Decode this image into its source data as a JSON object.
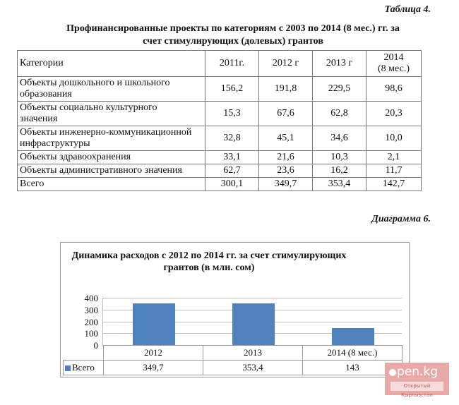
{
  "table": {
    "caption": "Таблица 4.",
    "title_line1": "Профинансированные проекты по категориям с 2003 по 2014 (8 мес.) гг. за",
    "title_line2": "счет стимулирующих (долевых) грантов",
    "headers": [
      "Категории",
      "2011г.",
      "2012 г",
      "2013 г",
      "2014",
      "(8 мес.)"
    ],
    "rows": [
      {
        "category_l1": "Объекты дошкольного и школьного",
        "category_l2": "образования",
        "values": [
          "156,2",
          "191,8",
          "229,5",
          "98,6"
        ]
      },
      {
        "category_l1": "Объекты социально культурного",
        "category_l2": "значения",
        "values": [
          "15,3",
          "67,6",
          "62,8",
          "20,3"
        ]
      },
      {
        "category_l1": "Объекты инженерно-коммуникационной",
        "category_l2": "инфраструктуры",
        "values": [
          "32,8",
          "45,1",
          "34,6",
          "10,0"
        ]
      },
      {
        "category_l1": "Объекты здравоохранения",
        "category_l2": "",
        "values": [
          "33,1",
          "21,6",
          "10,3",
          "2,1"
        ]
      },
      {
        "category_l1": "Объекты административного значения",
        "category_l2": "",
        "values": [
          "62,7",
          "23,6",
          "16,2",
          "11,7"
        ]
      },
      {
        "category_l1": "Всего",
        "category_l2": "",
        "values": [
          "300,1",
          "349,7",
          "353,4",
          "142,7"
        ]
      }
    ]
  },
  "diagram": {
    "caption": "Диаграмма 6.",
    "title_line1": "Динамика расходов  с  2012 по 2014 гг. за счет стимулирующих",
    "title_line2": "грантов (в млн. сом)",
    "y_ticks": [
      "400",
      "300",
      "200",
      "100",
      "0"
    ],
    "legend_label": "Всего",
    "categories": [
      "2012",
      "2013",
      "2014 (8 мес.)"
    ],
    "value_labels": [
      "349,7",
      "353,4",
      "143"
    ]
  },
  "chart_data": {
    "type": "bar",
    "title": "Динамика расходов с 2012 по 2014 гг. за счет стимулирующих грантов (в млн. сом)",
    "categories": [
      "2012",
      "2013",
      "2014 (8 мес.)"
    ],
    "series": [
      {
        "name": "Всего",
        "values": [
          349.7,
          353.4,
          143
        ],
        "color": "#4f81bd"
      }
    ],
    "xlabel": "",
    "ylabel": "",
    "ylim": [
      0,
      400
    ],
    "y_ticks": [
      0,
      100,
      200,
      300,
      400
    ],
    "grid": true,
    "legend_position": "data-table"
  },
  "watermark": {
    "logo": "pen.kg",
    "subtitle": "Открытый Кыргызстан"
  }
}
